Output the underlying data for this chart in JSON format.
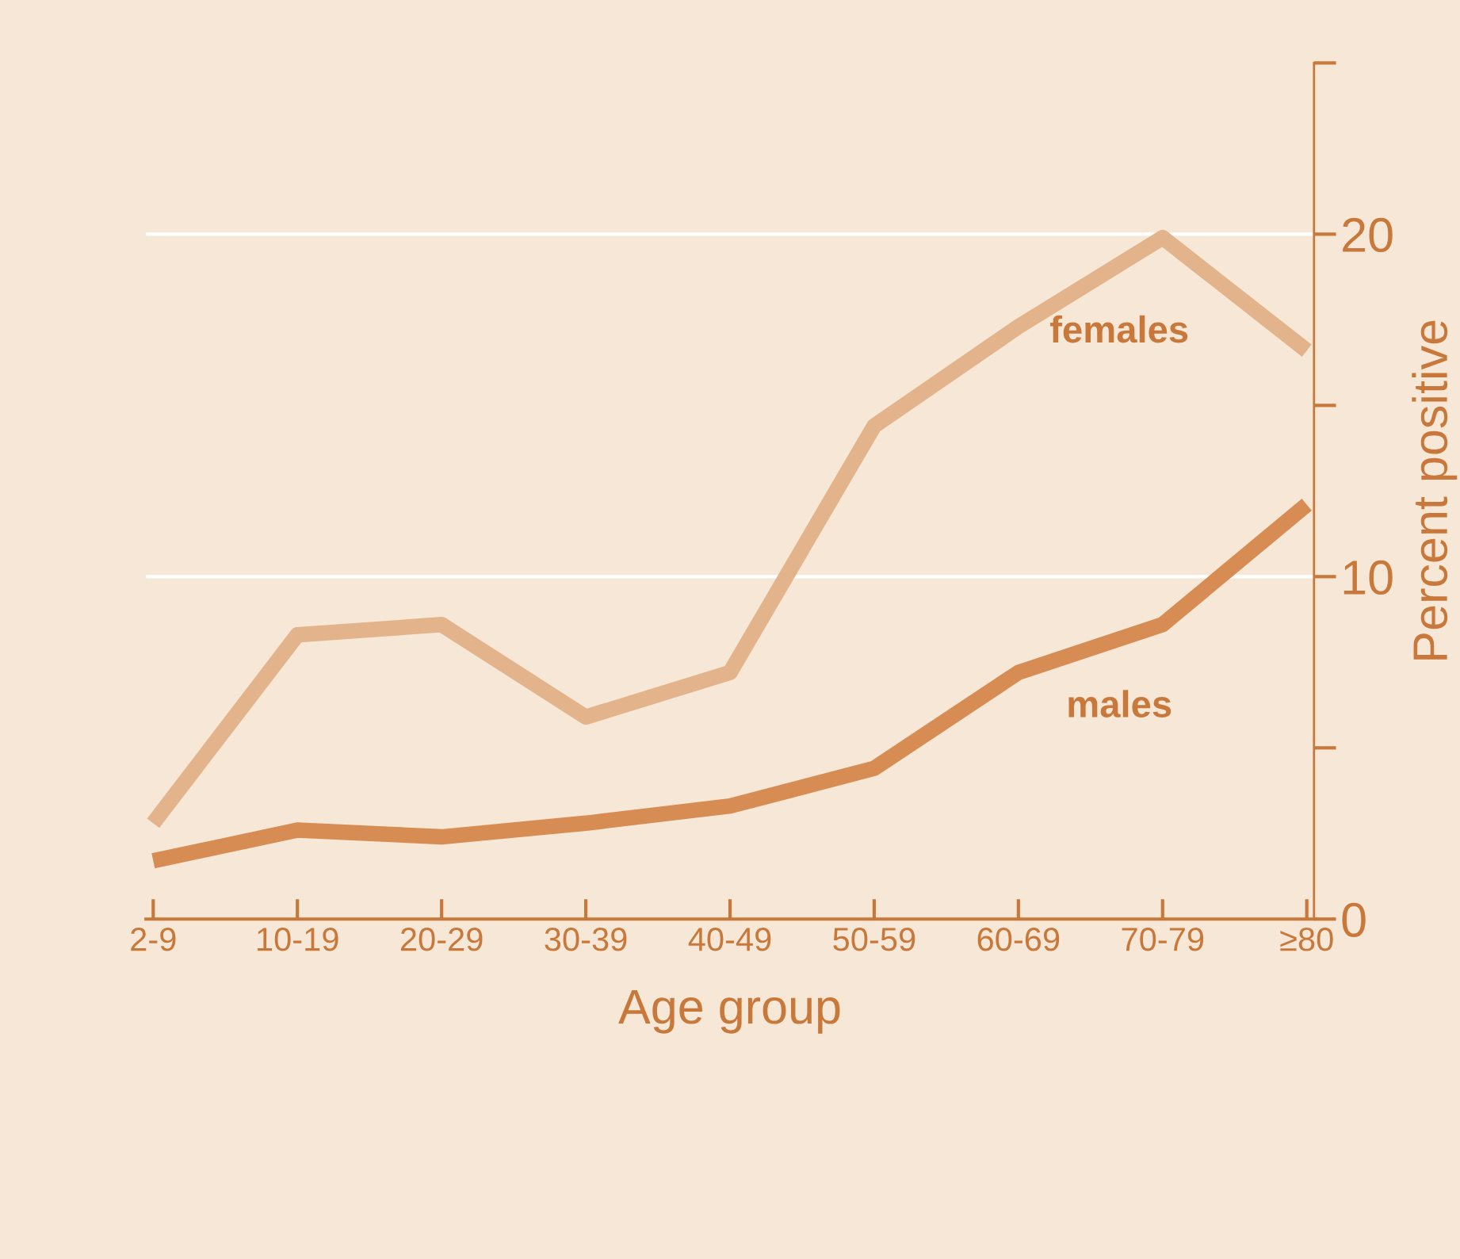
{
  "chart_data": {
    "type": "line",
    "xlabel": "Age group",
    "ylabel": "Percent positive",
    "categories": [
      "2-9",
      "10-19",
      "20-29",
      "30-39",
      "40-49",
      "50-59",
      "60-69",
      "70-79",
      "≥80"
    ],
    "series": [
      {
        "name": "females",
        "color": "#e3b48c",
        "values": [
          2.8,
          8.3,
          8.6,
          5.9,
          7.2,
          14.4,
          17.3,
          19.9,
          16.6
        ]
      },
      {
        "name": "males",
        "color": "#d68c52",
        "values": [
          1.7,
          2.6,
          2.4,
          2.8,
          3.3,
          4.4,
          7.2,
          8.6,
          12.1
        ]
      }
    ],
    "ylim": [
      0,
      25
    ],
    "yticks": [
      0,
      {
        "value": 5,
        "label": null
      },
      10,
      {
        "value": 15,
        "label": null
      },
      20,
      {
        "value": 25,
        "label": null
      }
    ],
    "grid": "y",
    "legend": false,
    "marker": "none",
    "line_style": "solid"
  }
}
